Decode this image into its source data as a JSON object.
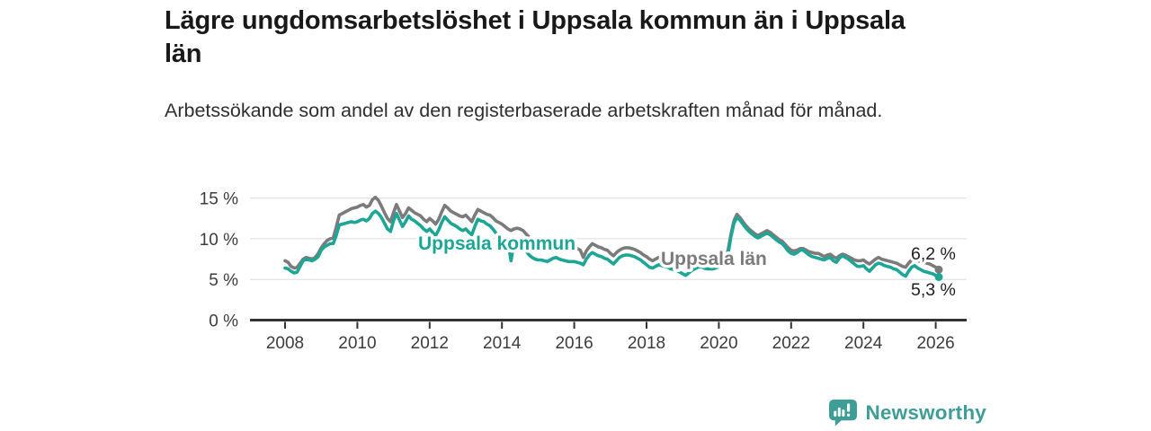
{
  "header": {
    "title": "Lägre ungdomsarbetslöshet i Uppsala kommun än i Uppsala län",
    "subtitle": "Arbetssökande som andel av den registerbaserade arbetskraften månad för månad."
  },
  "footer": {
    "brand": "Newsworthy",
    "logo_icon": "speech-bubble-bar-chart-exclamation",
    "logo_color": "#3f9d97"
  },
  "chart_data": {
    "type": "line",
    "title": "Lägre ungdomsarbetslöshet i Uppsala kommun än i Uppsala län",
    "subtitle": "Arbetssökande som andel av den registerbaserade arbetskraften månad för månad.",
    "unit": "%",
    "x_interval": "monthly",
    "x_start": "2008-01",
    "x_end": "2026-02",
    "grid": true,
    "ylim": [
      0,
      16.5
    ],
    "y_ticks": [
      {
        "value": 0,
        "label": "0 %"
      },
      {
        "value": 5,
        "label": "5 %"
      },
      {
        "value": 10,
        "label": "10 %"
      },
      {
        "value": 15,
        "label": "15 %"
      }
    ],
    "x_ticks": [
      {
        "value": 2008,
        "label": "2008"
      },
      {
        "value": 2010,
        "label": "2010"
      },
      {
        "value": 2012,
        "label": "2012"
      },
      {
        "value": 2014,
        "label": "2014"
      },
      {
        "value": 2016,
        "label": "2016"
      },
      {
        "value": 2018,
        "label": "2018"
      },
      {
        "value": 2020,
        "label": "2020"
      },
      {
        "value": 2022,
        "label": "2022"
      },
      {
        "value": 2024,
        "label": "2024"
      },
      {
        "value": 2026,
        "label": "2026"
      }
    ],
    "series": [
      {
        "name": "Uppsala län",
        "color": "#7b7b7b",
        "end_value": 6.2,
        "end_label": "6,2 %",
        "values": [
          7.3,
          7.1,
          6.6,
          6.4,
          6.5,
          7.0,
          7.5,
          7.7,
          7.6,
          7.5,
          7.7,
          8.2,
          8.9,
          9.4,
          9.8,
          10.0,
          10.1,
          11.4,
          12.9,
          13.1,
          13.3,
          13.5,
          13.7,
          13.8,
          13.9,
          14.1,
          14.2,
          13.9,
          14.1,
          14.8,
          15.1,
          14.7,
          14.0,
          13.2,
          12.5,
          12.1,
          13.2,
          14.2,
          13.4,
          12.6,
          13.1,
          13.8,
          13.5,
          13.2,
          13.0,
          12.8,
          12.4,
          12.1,
          12.5,
          12.2,
          11.8,
          12.4,
          13.3,
          14.1,
          13.8,
          13.4,
          13.2,
          13.0,
          12.8,
          12.7,
          12.9,
          12.5,
          12.1,
          12.9,
          13.6,
          13.4,
          13.2,
          13.0,
          12.9,
          12.6,
          12.2,
          12.0,
          11.8,
          11.5,
          11.2,
          11.0,
          11.2,
          11.3,
          11.2,
          11.0,
          10.6,
          10.2,
          10.0,
          9.8,
          9.7,
          9.6,
          9.4,
          9.2,
          9.4,
          9.6,
          9.7,
          9.5,
          9.4,
          9.3,
          9.2,
          9.1,
          9.0,
          8.8,
          8.6,
          7.7,
          8.5,
          9.0,
          9.4,
          9.2,
          9.0,
          8.9,
          8.7,
          8.6,
          8.2,
          7.9,
          8.3,
          8.6,
          8.8,
          8.9,
          8.9,
          8.8,
          8.7,
          8.5,
          8.3,
          8.0,
          7.8,
          7.5,
          7.3,
          7.5,
          7.7,
          7.6,
          7.6,
          7.4,
          7.3,
          7.2,
          7.1,
          7.0,
          6.9,
          6.8,
          7.0,
          7.2,
          7.4,
          7.5,
          7.5,
          7.3,
          7.2,
          7.1,
          7.1,
          7.1,
          7.2,
          7.3,
          7.8,
          8.5,
          10.5,
          12.2,
          13.0,
          12.6,
          12.1,
          11.6,
          11.2,
          10.9,
          10.6,
          10.4,
          10.6,
          10.8,
          11.0,
          10.8,
          10.5,
          10.2,
          9.9,
          9.7,
          9.3,
          8.9,
          8.6,
          8.5,
          8.6,
          8.8,
          8.8,
          8.6,
          8.4,
          8.3,
          8.2,
          8.2,
          8.0,
          7.8,
          8.0,
          8.1,
          7.8,
          7.6,
          7.9,
          8.1,
          8.0,
          7.8,
          7.6,
          7.4,
          7.3,
          7.3,
          7.4,
          7.1,
          6.9,
          7.2,
          7.5,
          7.7,
          7.5,
          7.4,
          7.3,
          7.2,
          7.1,
          7.0,
          6.8,
          6.6,
          6.5,
          7.0,
          7.4,
          7.6,
          7.3,
          7.2,
          7.1,
          7.0,
          6.9,
          6.7,
          6.5,
          6.2
        ]
      },
      {
        "name": "Uppsala kommun",
        "color": "#1da595",
        "end_value": 5.3,
        "end_label": "5,3 %",
        "values": [
          6.4,
          6.3,
          6.0,
          5.8,
          5.9,
          6.6,
          7.3,
          7.5,
          7.4,
          7.3,
          7.5,
          7.8,
          8.6,
          9.0,
          9.2,
          9.4,
          9.4,
          10.4,
          11.7,
          11.8,
          11.9,
          12.0,
          12.1,
          12.0,
          12.1,
          12.3,
          12.4,
          12.2,
          12.5,
          13.1,
          13.4,
          13.1,
          12.6,
          11.9,
          11.2,
          10.9,
          12.2,
          13.1,
          12.3,
          11.5,
          12.1,
          12.8,
          12.4,
          12.2,
          11.9,
          11.6,
          11.2,
          10.9,
          11.2,
          10.8,
          10.4,
          11.1,
          12.0,
          12.7,
          12.3,
          11.9,
          11.7,
          11.5,
          11.2,
          11.0,
          11.2,
          10.8,
          10.5,
          11.5,
          12.4,
          12.2,
          12.1,
          11.8,
          11.6,
          11.2,
          10.7,
          10.4,
          10.2,
          9.9,
          9.6,
          7.3,
          9.5,
          9.7,
          9.4,
          9.0,
          8.5,
          8.0,
          7.7,
          7.5,
          7.4,
          7.4,
          7.3,
          7.2,
          7.4,
          7.6,
          7.7,
          7.5,
          7.4,
          7.3,
          7.2,
          7.2,
          7.2,
          7.1,
          7.0,
          6.8,
          7.5,
          8.0,
          8.3,
          8.1,
          7.9,
          7.8,
          7.6,
          7.5,
          7.2,
          6.9,
          7.3,
          7.7,
          7.9,
          8.0,
          8.0,
          7.9,
          7.8,
          7.6,
          7.4,
          7.1,
          6.8,
          6.5,
          6.4,
          6.6,
          6.8,
          6.7,
          6.6,
          6.5,
          6.3,
          6.2,
          6.1,
          5.9,
          5.7,
          5.5,
          5.8,
          6.1,
          6.3,
          6.5,
          6.6,
          6.4,
          6.3,
          6.3,
          6.3,
          6.4,
          6.6,
          6.8,
          7.4,
          8.0,
          10.2,
          11.9,
          12.6,
          12.3,
          11.8,
          11.3,
          10.9,
          10.6,
          10.3,
          10.1,
          10.3,
          10.5,
          10.7,
          10.5,
          10.2,
          9.9,
          9.6,
          9.4,
          9.0,
          8.5,
          8.2,
          8.1,
          8.3,
          8.6,
          8.6,
          8.3,
          8.0,
          7.8,
          7.7,
          7.6,
          7.5,
          7.4,
          7.6,
          7.7,
          7.3,
          7.1,
          7.6,
          7.9,
          7.7,
          7.5,
          7.2,
          6.9,
          6.6,
          6.6,
          6.7,
          6.3,
          6.0,
          6.4,
          6.8,
          7.0,
          6.9,
          6.7,
          6.6,
          6.5,
          6.3,
          6.2,
          5.9,
          5.6,
          5.4,
          6.0,
          6.5,
          6.7,
          6.4,
          6.2,
          6.0,
          5.9,
          5.8,
          5.7,
          5.5,
          5.3
        ]
      }
    ],
    "legend_position": "inline-labels"
  }
}
